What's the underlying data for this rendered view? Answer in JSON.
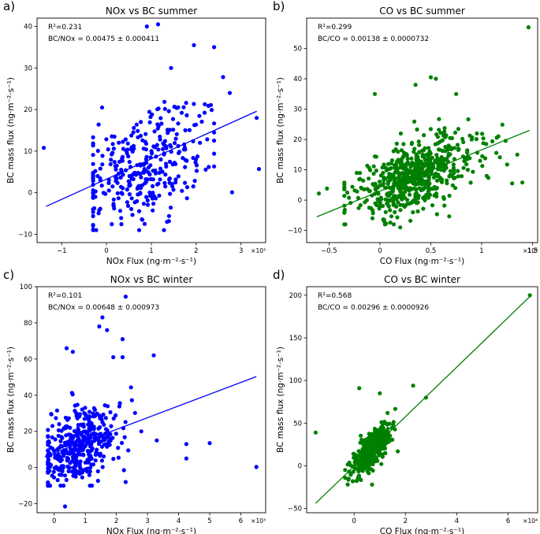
{
  "chart_data": [
    {
      "type": "scatter",
      "panel_label": "a)",
      "title": "NOx vs BC summer",
      "xlabel": "NOx Flux (ng·m⁻²·s⁻¹)",
      "ylabel": "BC mass flux (ng·m⁻²·s⁻¹)",
      "x_exponent": "×10³",
      "xlim": [
        -1.55,
        3.55
      ],
      "ylim": [
        -12,
        42
      ],
      "xticks": [
        -1,
        0,
        1,
        2,
        3
      ],
      "yticks": [
        -10,
        0,
        10,
        20,
        30,
        40
      ],
      "r2_text": "R²=0.231",
      "slope_text": "BC/NOx = 0.00475 ± 0.000411",
      "color": "#0000ff",
      "fit": {
        "x": [
          -1.35,
          3.35
        ],
        "y": [
          -3.3,
          19.6
        ]
      },
      "scatter_params": {
        "n": 330,
        "xmean": 0.8,
        "xsd": 0.75,
        "xmin": -0.3,
        "xmax": 2.4,
        "slope": 4.75,
        "intercept": 2.5,
        "ysd": 6.5,
        "ymin": -9,
        "ymax": 30,
        "seed": 11
      },
      "notable_points": [
        [
          -1.4,
          10.8
        ],
        [
          0.9,
          40
        ],
        [
          1.15,
          40.5
        ],
        [
          1.95,
          35.5
        ],
        [
          2.4,
          35
        ],
        [
          2.6,
          27.8
        ],
        [
          2.75,
          24
        ],
        [
          3.35,
          18
        ],
        [
          3.4,
          5.7
        ],
        [
          2.8,
          0.1
        ],
        [
          1.35,
          -7
        ],
        [
          0.8,
          -6.5
        ],
        [
          0.85,
          -7.5
        ],
        [
          -0.25,
          5.2
        ],
        [
          -0.25,
          -1
        ],
        [
          -0.1,
          20.5
        ]
      ]
    },
    {
      "type": "scatter",
      "panel_label": "b)",
      "title": "CO vs BC summer",
      "xlabel": "CO Flux (ng·m⁻²·s⁻¹)",
      "ylabel": "BC mass flux (ng·m⁻²·s⁻¹)",
      "x_exponent": "×10⁴",
      "xlim": [
        -0.72,
        1.55
      ],
      "ylim": [
        -14,
        60
      ],
      "xticks": [
        -0.5,
        0,
        0.5,
        1,
        1.5
      ],
      "yticks": [
        -10,
        0,
        10,
        20,
        30,
        40,
        50
      ],
      "r2_text": "R²=0.299",
      "slope_text": "BC/CO = 0.00138 ± 0.0000732",
      "color": "#008000",
      "fit": {
        "x": [
          -0.62,
          1.47
        ],
        "y": [
          -5.5,
          23
        ]
      },
      "scatter_params": {
        "n": 620,
        "xmean": 0.33,
        "xsd": 0.3,
        "xmin": -0.35,
        "xmax": 1.25,
        "slope": 13.8,
        "intercept": 3.2,
        "ysd": 5.5,
        "ymin": -8,
        "ymax": 37,
        "seed": 23
      },
      "notable_points": [
        [
          1.46,
          57
        ],
        [
          0.5,
          40.5
        ],
        [
          0.55,
          40
        ],
        [
          0.35,
          38
        ],
        [
          0.75,
          35
        ],
        [
          1.35,
          15
        ],
        [
          1.4,
          5.8
        ],
        [
          1.3,
          5.5
        ],
        [
          -0.6,
          2.2
        ],
        [
          -0.52,
          3.8
        ],
        [
          0.2,
          -9
        ],
        [
          0.05,
          -8
        ],
        [
          -0.32,
          2.5
        ],
        [
          -0.05,
          35
        ]
      ]
    },
    {
      "type": "scatter",
      "panel_label": "c)",
      "title": "NOx vs BC winter",
      "xlabel": "NOx Flux (ng·m⁻²·s⁻¹)",
      "ylabel": "BC mass flux (ng·m⁻²·s⁻¹)",
      "x_exponent": "×10³",
      "xlim": [
        -0.55,
        6.8
      ],
      "ylim": [
        -25,
        100
      ],
      "xticks": [
        0,
        1,
        2,
        3,
        4,
        5,
        6
      ],
      "yticks": [
        -20,
        0,
        20,
        40,
        60,
        80,
        100
      ],
      "r2_text": "R²=0.101",
      "slope_text": "BC/NOx = 0.00648 ± 0.000973",
      "color": "#0000ff",
      "fit": {
        "x": [
          -0.3,
          6.5
        ],
        "y": [
          6.1,
          50.3
        ]
      },
      "scatter_params": {
        "n": 380,
        "xmean": 0.85,
        "xsd": 0.7,
        "xmin": -0.2,
        "xmax": 2.6,
        "slope": 6.5,
        "intercept": 6.5,
        "ysd": 10,
        "ymin": -10,
        "ymax": 52,
        "seed": 37
      },
      "notable_points": [
        [
          2.3,
          94.5
        ],
        [
          1.55,
          83
        ],
        [
          1.45,
          78
        ],
        [
          1.7,
          76
        ],
        [
          2.2,
          71
        ],
        [
          3.2,
          62
        ],
        [
          2.2,
          61
        ],
        [
          0.4,
          66
        ],
        [
          0.6,
          64
        ],
        [
          1.9,
          61
        ],
        [
          4.25,
          13
        ],
        [
          4.25,
          5
        ],
        [
          5.0,
          13.5
        ],
        [
          6.5,
          0.3
        ],
        [
          0.35,
          -21.5
        ],
        [
          2.3,
          -8
        ],
        [
          3.3,
          15
        ],
        [
          2.8,
          20
        ]
      ]
    },
    {
      "type": "scatter",
      "panel_label": "d)",
      "title": "CO vs BC winter",
      "xlabel": "CO Flux (ng·m⁻²·s⁻¹)",
      "ylabel": "BC mass flux (ng·m⁻²·s⁻¹)",
      "x_exponent": "×10⁴",
      "xlim": [
        -1.85,
        7.15
      ],
      "ylim": [
        -55,
        210
      ],
      "xticks": [
        0,
        2,
        4,
        6
      ],
      "yticks": [
        -50,
        0,
        50,
        100,
        150,
        200
      ],
      "r2_text": "R²=0.568",
      "slope_text": "BC/CO = 0.00296 ± 0.0000926",
      "color": "#008000",
      "fit": {
        "x": [
          -1.5,
          6.9
        ],
        "y": [
          -44,
          200
        ]
      },
      "scatter_params": {
        "n": 520,
        "xmean": 0.65,
        "xsd": 0.38,
        "xmin": -0.35,
        "xmax": 1.7,
        "slope": 29.6,
        "intercept": -1.5,
        "ysd": 9,
        "ymin": -22,
        "ymax": 70,
        "seed": 53
      },
      "notable_points": [
        [
          6.85,
          200
        ],
        [
          -1.5,
          39
        ],
        [
          0.2,
          91
        ],
        [
          2.3,
          94
        ],
        [
          2.8,
          80
        ],
        [
          1.7,
          17
        ],
        [
          -0.35,
          -14
        ],
        [
          0.7,
          -22
        ],
        [
          1.3,
          62
        ],
        [
          1.0,
          85
        ]
      ]
    }
  ]
}
